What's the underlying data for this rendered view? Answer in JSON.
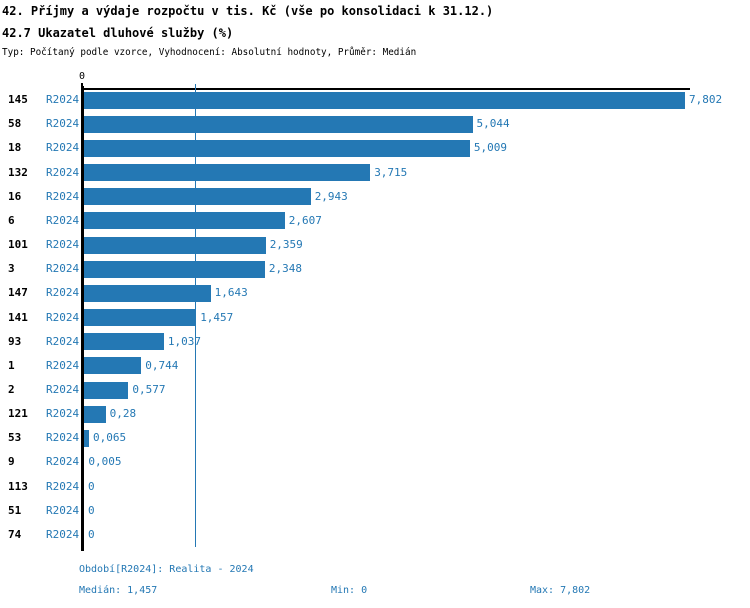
{
  "title": "42. Příjmy a výdaje rozpočtu v tis. Kč (vše po konsolidaci k 31.12.)",
  "subtitle": "42.7 Ukazatel dluhové služby (%)",
  "meta_line": "Typ: Počítaný podle vzorce, Vyhodnocení: Absolutní hodnoty, Průměr: Medián",
  "colors": {
    "accent": "#2478b4",
    "axis": "#000000",
    "background": "#ffffff"
  },
  "chart_data": {
    "type": "bar",
    "orientation": "horizontal",
    "title": "42.7 Ukazatel dluhové služby (%)",
    "series_label": "R2024",
    "categories": [
      "145",
      "58",
      "18",
      "132",
      "16",
      "6",
      "101",
      "3",
      "147",
      "141",
      "93",
      "1",
      "2",
      "121",
      "53",
      "9",
      "113",
      "51",
      "74"
    ],
    "values": [
      7.802,
      5.044,
      5.009,
      3.715,
      2.943,
      2.607,
      2.359,
      2.348,
      1.643,
      1.457,
      1.037,
      0.744,
      0.577,
      0.28,
      0.065,
      0.005,
      0,
      0,
      0
    ],
    "value_labels": [
      "7,802",
      "5,044",
      "5,009",
      "3,715",
      "2,943",
      "2,607",
      "2,359",
      "2,348",
      "1,643",
      "1,457",
      "1,037",
      "0,744",
      "0,577",
      "0,28",
      "0,065",
      "0,005",
      "0",
      "0",
      "0"
    ],
    "x_tick_labels": [
      "0"
    ],
    "xlim": [
      0,
      7.9
    ],
    "median": 1.457,
    "median_gridline": true,
    "legend_position": "none",
    "grid": false
  },
  "footer": {
    "period_line": "Období[R2024]: Realita - 2024",
    "median_label": "Medián: 1,457",
    "min_label": "Min: 0",
    "max_label": "Max: 7,802"
  }
}
